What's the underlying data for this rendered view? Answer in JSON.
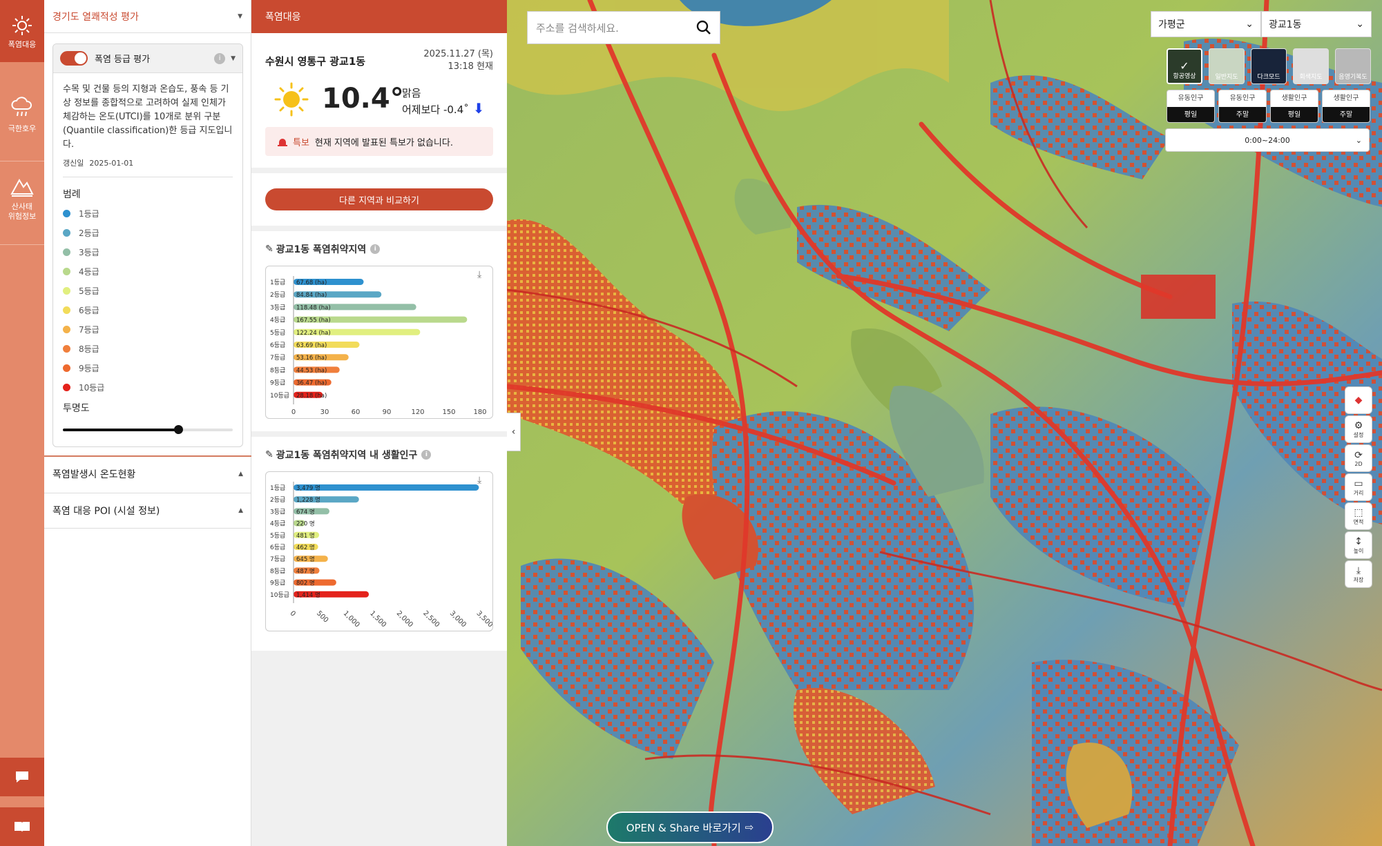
{
  "rail": {
    "items": [
      {
        "label": "폭염대응",
        "icon": "sun-icon",
        "active": true
      },
      {
        "label": "극한호우",
        "icon": "rain-cloud-icon",
        "active": false
      },
      {
        "label": "산사태\n위험정보",
        "icon": "landslide-icon",
        "active": false
      }
    ],
    "bottom": [
      {
        "icon": "chat-icon"
      },
      {
        "icon": "book-icon"
      }
    ]
  },
  "left": {
    "header": "경기도 열쾌적성 평가",
    "card_title": "폭염 등급 평가",
    "description": "수목 및 건물 등의 지형과 온습도, 풍속 등 기상 정보를 종합적으로 고려하여 실제 인체가 체감하는 온도(UTCI)를 10개로 분위 구분(Quantile classification)한 등급 지도입니다.",
    "updated_label": "갱신일",
    "updated_date": "2025-01-01",
    "legend_title": "범례",
    "legend": [
      {
        "label": "1등급",
        "color": "#2e91cf"
      },
      {
        "label": "2등급",
        "color": "#5aa7c5"
      },
      {
        "label": "3등급",
        "color": "#93bfa7"
      },
      {
        "label": "4등급",
        "color": "#b9d98c"
      },
      {
        "label": "5등급",
        "color": "#e1ef7f"
      },
      {
        "label": "6등급",
        "color": "#f2dc5a"
      },
      {
        "label": "7등급",
        "color": "#f4b24a"
      },
      {
        "label": "8등급",
        "color": "#f07f3c"
      },
      {
        "label": "9등급",
        "color": "#ee6a2f"
      },
      {
        "label": "10등급",
        "color": "#e4221b"
      }
    ],
    "opacity_title": "투명도",
    "opacity": 0.68,
    "accordions": [
      "폭염발생시 온도현황",
      "폭염 대응 POI (시설 정보)"
    ]
  },
  "mid": {
    "header": "폭염대응",
    "location": "수원시 영통구 광교1동",
    "date_line1": "2025.11.27 (목)",
    "date_line2": "13:18 현재",
    "temp": "10.4°",
    "condition": "맑음",
    "compare_yesterday": "어제보다 -0.4˚",
    "alert_tag": "특보",
    "alert_text": "현재 지역에 발표된 특보가 없습니다.",
    "compare_button": "다른 지역과 비교하기",
    "chart1_title": "광교1동 폭염취약지역",
    "chart2_title": "광교1동 폭염취약지역 내 생활인구"
  },
  "chart_data": [
    {
      "type": "bar",
      "orientation": "horizontal",
      "title": "광교1동 폭염취약지역",
      "categories": [
        "1등급",
        "2등급",
        "3등급",
        "4등급",
        "5등급",
        "6등급",
        "7등급",
        "8등급",
        "9등급",
        "10등급"
      ],
      "values": [
        67.68,
        84.84,
        118.48,
        167.55,
        122.24,
        63.69,
        53.16,
        44.53,
        36.47,
        28.18
      ],
      "labels": [
        "67.68 (ha)",
        "84.84 (ha)",
        "118.48 (ha)",
        "167.55 (ha)",
        "122.24 (ha)",
        "63.69 (ha)",
        "53.16 (ha)",
        "44.53 (ha)",
        "36.47 (ha)",
        "28.18 (ha)"
      ],
      "xticks": [
        "0",
        "30",
        "60",
        "90",
        "120",
        "150",
        "180"
      ],
      "xlim": [
        0,
        180
      ],
      "colors": [
        "#2e91cf",
        "#5aa7c5",
        "#93bfa7",
        "#b9d98c",
        "#e1ef7f",
        "#f2dc5a",
        "#f4b24a",
        "#f07f3c",
        "#ee6a2f",
        "#e4221b"
      ]
    },
    {
      "type": "bar",
      "orientation": "horizontal",
      "title": "광교1동 폭염취약지역 내 생활인구",
      "categories": [
        "1등급",
        "2등급",
        "3등급",
        "4등급",
        "5등급",
        "6등급",
        "7등급",
        "8등급",
        "9등급",
        "10등급"
      ],
      "values": [
        3479,
        1228,
        674,
        220,
        481,
        462,
        645,
        487,
        802,
        1414
      ],
      "labels": [
        "3,479 명",
        "1,228 명",
        "674 명",
        "220 명",
        "481 명",
        "462 명",
        "645 명",
        "487 명",
        "802 명",
        "1,414 명"
      ],
      "xticks": [
        "0",
        "500",
        "1,000",
        "1,500",
        "2,000",
        "2,500",
        "3,000",
        "3,500"
      ],
      "xlim": [
        0,
        3500
      ],
      "colors": [
        "#2e91cf",
        "#5aa7c5",
        "#93bfa7",
        "#b9d98c",
        "#e1ef7f",
        "#f2dc5a",
        "#f4b24a",
        "#f07f3c",
        "#ee6a2f",
        "#e4221b"
      ]
    }
  ],
  "map": {
    "search_placeholder": "주소를 검색하세요.",
    "region1": "가평군",
    "region2": "광교1동",
    "basemaps": [
      {
        "label": "항공영상",
        "color": "#2b3b2a",
        "selected": true
      },
      {
        "label": "일반지도",
        "color": "#c9d6c2",
        "selected": false
      },
      {
        "label": "다크모드",
        "color": "#18243a",
        "selected": false
      },
      {
        "label": "회색지도",
        "color": "#dedede",
        "selected": false
      },
      {
        "label": "음영기복도",
        "color": "#b8b8b8",
        "selected": false
      }
    ],
    "population_buttons": [
      {
        "top": "유동인구",
        "bottom": "평일"
      },
      {
        "top": "유동인구",
        "bottom": "주말"
      },
      {
        "top": "생활인구",
        "bottom": "평일"
      },
      {
        "top": "생활인구",
        "bottom": "주말"
      }
    ],
    "time_range": "0:00~24:00",
    "tools": [
      {
        "label": "",
        "icon": "compass-icon"
      },
      {
        "label": "설정",
        "icon": "settings-icon"
      },
      {
        "label": "2D",
        "icon": "rotate-2d-icon"
      },
      {
        "label": "거리",
        "icon": "ruler-icon"
      },
      {
        "label": "면적",
        "icon": "area-icon"
      },
      {
        "label": "높이",
        "icon": "height-icon"
      },
      {
        "label": "저장",
        "icon": "save-icon"
      }
    ],
    "open_share": "OPEN & Share 바로가기"
  }
}
